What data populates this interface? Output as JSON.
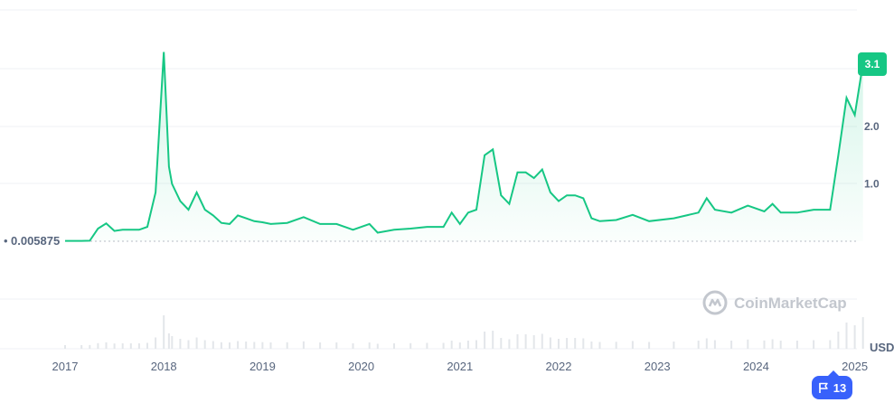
{
  "colors": {
    "line": "#16c784",
    "baseline_dots": "#b7bcc5",
    "grid": "#eff2f5",
    "badge": "#3861fb",
    "events_badge": "#3861fb"
  },
  "chart_data": {
    "type": "area",
    "currency_label": "USD",
    "x_ticks": [
      "2017",
      "2018",
      "2019",
      "2020",
      "2021",
      "2022",
      "2023",
      "2024",
      "2025"
    ],
    "y_ticks": [
      "1.0",
      "2.0"
    ],
    "y_range": [
      0,
      3.5
    ],
    "baseline": {
      "value": 0.005875,
      "label": "0.005875"
    },
    "current_price_badge": "3.1",
    "watermark": "CoinMarketCap",
    "series": [
      {
        "values": [
          [
            "2017-01",
            0.006
          ],
          [
            "2017-03",
            0.006
          ],
          [
            "2017-04",
            0.01
          ],
          [
            "2017-05",
            0.22
          ],
          [
            "2017-06",
            0.31
          ],
          [
            "2017-07",
            0.18
          ],
          [
            "2017-08",
            0.2
          ],
          [
            "2017-09",
            0.2
          ],
          [
            "2017-10",
            0.2
          ],
          [
            "2017-11",
            0.25
          ],
          [
            "2017-12",
            0.85
          ],
          [
            "2018-01",
            3.3
          ],
          [
            "2018-01-20",
            1.3
          ],
          [
            "2018-02",
            1.0
          ],
          [
            "2018-03",
            0.7
          ],
          [
            "2018-04",
            0.55
          ],
          [
            "2018-05",
            0.85
          ],
          [
            "2018-06",
            0.55
          ],
          [
            "2018-07",
            0.45
          ],
          [
            "2018-08",
            0.32
          ],
          [
            "2018-09",
            0.3
          ],
          [
            "2018-10",
            0.45
          ],
          [
            "2018-11",
            0.4
          ],
          [
            "2018-12",
            0.35
          ],
          [
            "2019-01",
            0.33
          ],
          [
            "2019-02",
            0.3
          ],
          [
            "2019-04",
            0.32
          ],
          [
            "2019-06",
            0.42
          ],
          [
            "2019-08",
            0.3
          ],
          [
            "2019-10",
            0.3
          ],
          [
            "2019-12",
            0.2
          ],
          [
            "2020-02",
            0.3
          ],
          [
            "2020-03",
            0.15
          ],
          [
            "2020-05",
            0.2
          ],
          [
            "2020-07",
            0.22
          ],
          [
            "2020-09",
            0.25
          ],
          [
            "2020-11",
            0.25
          ],
          [
            "2020-12",
            0.5
          ],
          [
            "2021-01",
            0.3
          ],
          [
            "2021-02",
            0.5
          ],
          [
            "2021-03",
            0.55
          ],
          [
            "2021-04",
            1.5
          ],
          [
            "2021-05",
            1.6
          ],
          [
            "2021-06",
            0.8
          ],
          [
            "2021-07",
            0.65
          ],
          [
            "2021-08",
            1.2
          ],
          [
            "2021-09",
            1.2
          ],
          [
            "2021-10",
            1.1
          ],
          [
            "2021-11",
            1.25
          ],
          [
            "2021-12",
            0.85
          ],
          [
            "2022-01",
            0.7
          ],
          [
            "2022-02",
            0.8
          ],
          [
            "2022-03",
            0.8
          ],
          [
            "2022-04",
            0.75
          ],
          [
            "2022-05",
            0.4
          ],
          [
            "2022-06",
            0.35
          ],
          [
            "2022-08",
            0.37
          ],
          [
            "2022-10",
            0.46
          ],
          [
            "2022-12",
            0.35
          ],
          [
            "2023-03",
            0.4
          ],
          [
            "2023-06",
            0.5
          ],
          [
            "2023-07",
            0.75
          ],
          [
            "2023-08",
            0.55
          ],
          [
            "2023-10",
            0.5
          ],
          [
            "2023-12",
            0.62
          ],
          [
            "2024-02",
            0.52
          ],
          [
            "2024-03",
            0.65
          ],
          [
            "2024-04",
            0.5
          ],
          [
            "2024-06",
            0.5
          ],
          [
            "2024-08",
            0.55
          ],
          [
            "2024-10",
            0.55
          ],
          [
            "2024-11",
            1.5
          ],
          [
            "2024-12",
            2.5
          ],
          [
            "2025-01",
            2.2
          ],
          [
            "2025-02",
            3.1
          ]
        ]
      }
    ]
  },
  "events_badge": {
    "count": "13",
    "icon": "flag-icon"
  }
}
